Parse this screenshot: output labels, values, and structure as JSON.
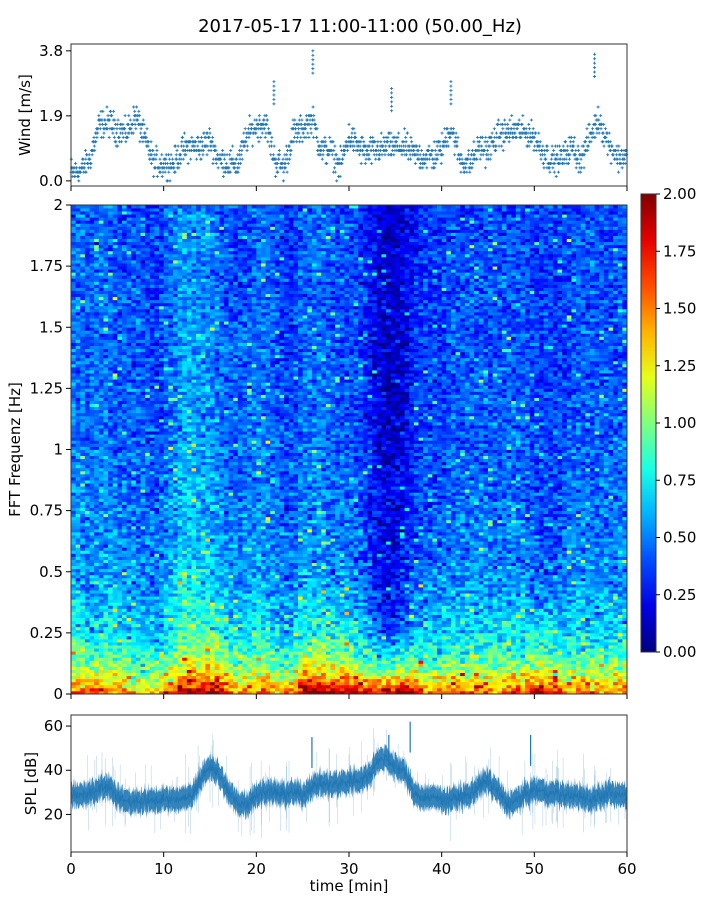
{
  "title": "2017-05-17 11:00-11:00 (50.00_Hz)",
  "chart_data": [
    {
      "type": "scatter",
      "name": "wind",
      "ylabel": "Wind [m/s]",
      "xlim": [
        0,
        60
      ],
      "ylim": [
        -0.15,
        4.0
      ],
      "yticks": [
        0.0,
        1.9,
        3.8
      ],
      "ytick_labels": [
        "0.0",
        "1.9",
        "3.8"
      ],
      "xticks": [
        0,
        10,
        20,
        30,
        40,
        50,
        60
      ],
      "marker": "+",
      "color": "#1f77b4",
      "minute_means": [
        0.25,
        0.3,
        0.6,
        1.6,
        1.7,
        1.5,
        1.4,
        1.9,
        1.2,
        0.5,
        0.5,
        0.5,
        0.9,
        1.0,
        1.0,
        1.2,
        0.6,
        0.5,
        0.5,
        1.3,
        1.6,
        1.7,
        0.6,
        0.4,
        1.4,
        1.5,
        1.8,
        0.9,
        0.9,
        0.4,
        1.3,
        1.0,
        0.8,
        0.9,
        1.0,
        1.0,
        1.0,
        0.8,
        0.7,
        0.7,
        0.9,
        1.6,
        0.6,
        0.5,
        1.0,
        0.9,
        1.3,
        1.4,
        1.5,
        1.4,
        1.3,
        0.8,
        0.6,
        0.7,
        1.0,
        0.6,
        1.3,
        1.8,
        1.1,
        0.7
      ],
      "peaks": [
        {
          "x": 26.1,
          "y": 3.8
        },
        {
          "x": 56.5,
          "y": 3.7
        },
        {
          "x": 21.9,
          "y": 2.9
        },
        {
          "x": 41.0,
          "y": 2.9
        },
        {
          "x": 34.6,
          "y": 2.7
        }
      ]
    },
    {
      "type": "heatmap",
      "name": "spectrogram",
      "ylabel": "FFT Frequenz [Hz]",
      "xlim": [
        0,
        60
      ],
      "ylim": [
        0,
        2
      ],
      "yticks": [
        0,
        0.25,
        0.5,
        0.75,
        1,
        1.25,
        1.5,
        1.75,
        2
      ],
      "ytick_labels": [
        "0",
        "0.25",
        "0.5",
        "0.75",
        "1",
        "1.25",
        "1.5",
        "1.75",
        "2"
      ],
      "colormap": "jet",
      "clim": [
        0,
        2
      ],
      "colorbar_ticks": [
        "0.00",
        "0.25",
        "0.50",
        "0.75",
        "1.00",
        "1.25",
        "1.50",
        "1.75",
        "2.00"
      ],
      "minute_level": [
        0.45,
        0.45,
        0.4,
        0.45,
        0.45,
        0.4,
        0.4,
        0.4,
        0.4,
        0.35,
        0.4,
        0.45,
        0.55,
        0.55,
        0.5,
        0.5,
        0.45,
        0.4,
        0.4,
        0.4,
        0.45,
        0.45,
        0.4,
        0.35,
        0.35,
        0.45,
        0.45,
        0.45,
        0.4,
        0.4,
        0.4,
        0.35,
        0.3,
        0.2,
        0.15,
        0.15,
        0.2,
        0.3,
        0.35,
        0.35,
        0.35,
        0.4,
        0.4,
        0.4,
        0.4,
        0.4,
        0.4,
        0.4,
        0.4,
        0.4,
        0.35,
        0.35,
        0.35,
        0.35,
        0.4,
        0.4,
        0.4,
        0.4,
        0.4,
        0.4
      ],
      "low_freq_level": [
        1.2,
        1.3,
        1.2,
        1.1,
        1.2,
        1.3,
        1.1,
        1.0,
        1.0,
        1.1,
        1.2,
        1.3,
        1.4,
        1.5,
        1.5,
        1.6,
        1.7,
        1.4,
        1.2,
        1.2,
        1.3,
        1.3,
        1.1,
        1.2,
        1.4,
        1.6,
        1.7,
        1.7,
        1.7,
        1.8,
        1.7,
        1.6,
        1.6,
        1.7,
        1.8,
        1.9,
        1.9,
        1.8,
        1.3,
        1.2,
        1.3,
        1.4,
        1.3,
        1.2,
        1.3,
        1.3,
        1.2,
        1.3,
        1.3,
        1.4,
        1.6,
        1.7,
        1.5,
        1.3,
        1.2,
        1.3,
        1.2,
        1.3,
        1.2,
        1.3
      ]
    },
    {
      "type": "line",
      "name": "spl",
      "ylabel": "SPL [dB]",
      "xlabel": "time [min]",
      "xlim": [
        0,
        60
      ],
      "ylim": [
        3,
        65
      ],
      "yticks": [
        20,
        40,
        60
      ],
      "ytick_labels": [
        "20",
        "40",
        "60"
      ],
      "xticks": [
        0,
        10,
        20,
        30,
        40,
        50,
        60
      ],
      "xtick_labels": [
        "0",
        "10",
        "20",
        "30",
        "40",
        "50",
        "60"
      ],
      "color": "#1f77b4",
      "minute_means": [
        29,
        29,
        29,
        32,
        33,
        28,
        26,
        26,
        26,
        26,
        27,
        27,
        27,
        28,
        36,
        42,
        38,
        30,
        25,
        25,
        29,
        30,
        30,
        29,
        30,
        29,
        33,
        34,
        33,
        34,
        35,
        36,
        37,
        44,
        46,
        41,
        40,
        29,
        28,
        28,
        27,
        27,
        28,
        29,
        33,
        35,
        31,
        25,
        26,
        29,
        31,
        30,
        29,
        29,
        28,
        28,
        27,
        28,
        29,
        29
      ]
    }
  ]
}
